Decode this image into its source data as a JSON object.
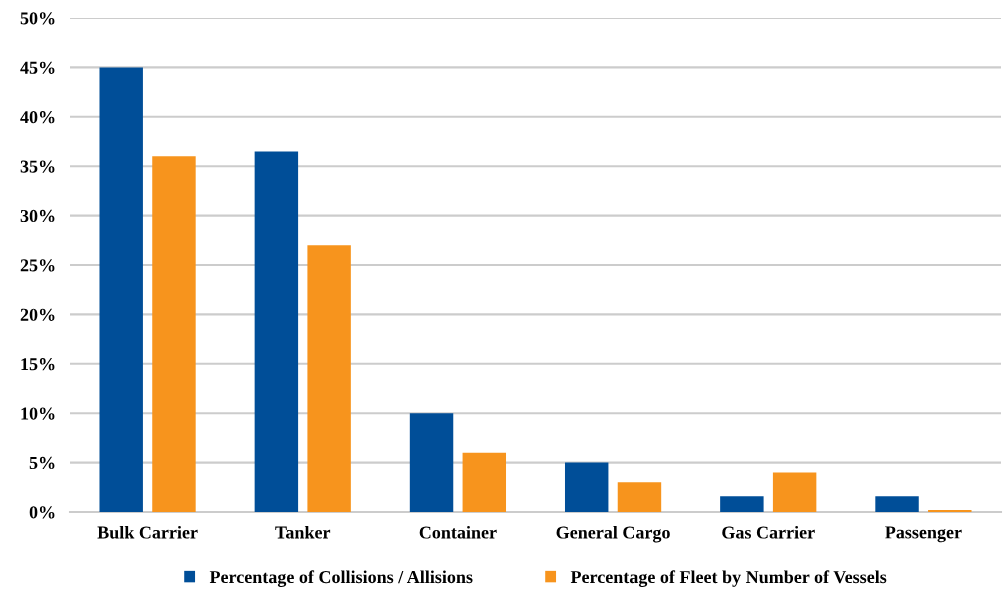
{
  "chart_data": {
    "type": "bar",
    "categories": [
      "Bulk Carrier",
      "Tanker",
      "Container",
      "General Cargo",
      "Gas Carrier",
      "Passenger"
    ],
    "series": [
      {
        "name": "Percentage of Collisions / Allisions",
        "color": "#004e98",
        "values": [
          45,
          36.5,
          10,
          5,
          1.6,
          1.6
        ]
      },
      {
        "name": "Percentage of Fleet by Number of Vessels",
        "color": "#f7941d",
        "values": [
          36,
          27,
          6,
          3,
          4,
          0.2
        ]
      }
    ],
    "ylim": [
      0,
      50
    ],
    "yticks": [
      {
        "value": 0,
        "label": "0%"
      },
      {
        "value": 5,
        "label": "5%"
      },
      {
        "value": 10,
        "label": "10%"
      },
      {
        "value": 15,
        "label": "15%"
      },
      {
        "value": 20,
        "label": "20%"
      },
      {
        "value": 25,
        "label": "25%"
      },
      {
        "value": 30,
        "label": "30%"
      },
      {
        "value": 35,
        "label": "35%"
      },
      {
        "value": 40,
        "label": "40%"
      },
      {
        "value": 45,
        "label": "45%"
      },
      {
        "value": 50,
        "label": "50%"
      }
    ],
    "grid": "y",
    "legend": "bottom"
  }
}
